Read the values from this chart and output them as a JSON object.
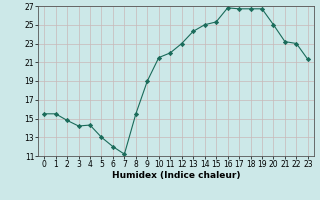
{
  "xlabel": "Humidex (Indice chaleur)",
  "x_values": [
    0,
    1,
    2,
    3,
    4,
    5,
    6,
    7,
    8,
    9,
    10,
    11,
    12,
    13,
    14,
    15,
    16,
    17,
    18,
    19,
    20,
    21,
    22,
    23
  ],
  "y_values": [
    15.5,
    15.5,
    14.8,
    14.2,
    14.3,
    13.0,
    12.0,
    11.2,
    15.5,
    19.0,
    21.5,
    22.0,
    23.0,
    24.3,
    25.0,
    25.3,
    26.8,
    26.7,
    26.7,
    26.7,
    25.0,
    23.2,
    23.0,
    21.3
  ],
  "line_color": "#1a6b5a",
  "marker": "D",
  "marker_size": 2.2,
  "bg_color": "#cce8e8",
  "grid_color": "#c8b8b8",
  "ylim": [
    11,
    27
  ],
  "xlim": [
    -0.5,
    23.5
  ],
  "yticks": [
    11,
    13,
    15,
    17,
    19,
    21,
    23,
    25,
    27
  ],
  "xticks": [
    0,
    1,
    2,
    3,
    4,
    5,
    6,
    7,
    8,
    9,
    10,
    11,
    12,
    13,
    14,
    15,
    16,
    17,
    18,
    19,
    20,
    21,
    22,
    23
  ],
  "tick_fontsize": 5.5,
  "xlabel_fontsize": 6.5
}
